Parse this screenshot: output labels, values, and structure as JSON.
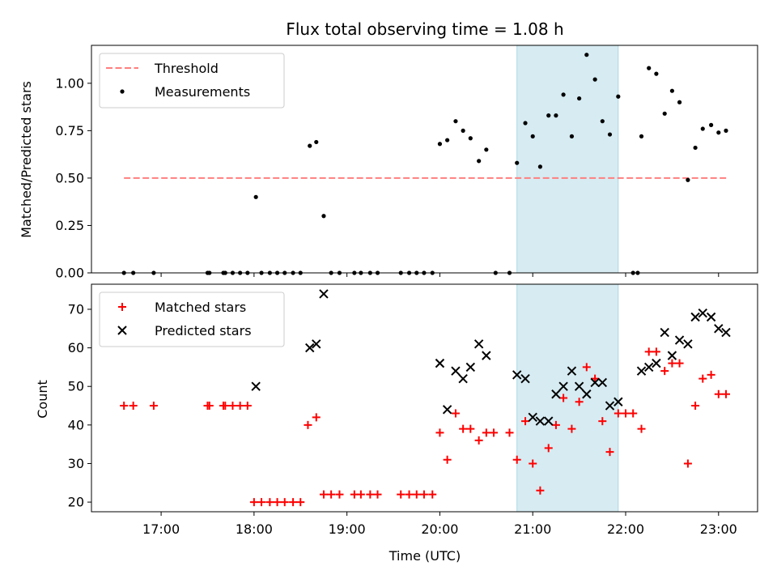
{
  "chart_data": [
    {
      "type": "scatter",
      "title": "Flux total observing time = 1.08 h",
      "ylabel": "Matched/Predicted stars",
      "ylim": [
        0,
        1.2
      ],
      "yticks": [
        "0.00",
        "0.25",
        "0.50",
        "0.75",
        "1.00"
      ],
      "xlim_hours": [
        16.25,
        23.42
      ],
      "highlight_span_hours": [
        20.83,
        21.92
      ],
      "highlight_color": "#add8e6",
      "legend_position": "top-left",
      "threshold": {
        "name": "Threshold",
        "value": 0.5,
        "x_range_hours": [
          16.6,
          23.1
        ],
        "color": "#ff7f7f",
        "style": "dashed"
      },
      "series": [
        {
          "name": "Measurements",
          "color": "#000000",
          "marker": "dot",
          "points": [
            [
              16.6,
              0
            ],
            [
              16.7,
              0
            ],
            [
              16.92,
              0
            ],
            [
              17.5,
              0
            ],
            [
              17.52,
              0
            ],
            [
              17.67,
              0
            ],
            [
              17.69,
              0
            ],
            [
              17.77,
              0
            ],
            [
              17.85,
              0
            ],
            [
              17.93,
              0
            ],
            [
              18.02,
              0.4
            ],
            [
              18.08,
              0
            ],
            [
              18.17,
              0
            ],
            [
              18.25,
              0
            ],
            [
              18.33,
              0
            ],
            [
              18.42,
              0
            ],
            [
              18.5,
              0
            ],
            [
              18.6,
              0.67
            ],
            [
              18.67,
              0.69
            ],
            [
              18.75,
              0.3
            ],
            [
              18.83,
              0
            ],
            [
              18.92,
              0
            ],
            [
              19.08,
              0
            ],
            [
              19.15,
              0
            ],
            [
              19.25,
              0
            ],
            [
              19.33,
              0
            ],
            [
              19.58,
              0
            ],
            [
              19.67,
              0
            ],
            [
              19.75,
              0
            ],
            [
              19.83,
              0
            ],
            [
              19.92,
              0
            ],
            [
              20.0,
              0.68
            ],
            [
              20.08,
              0.7
            ],
            [
              20.17,
              0.8
            ],
            [
              20.25,
              0.75
            ],
            [
              20.33,
              0.71
            ],
            [
              20.42,
              0.59
            ],
            [
              20.5,
              0.65
            ],
            [
              20.6,
              0
            ],
            [
              20.75,
              0
            ],
            [
              20.83,
              0.58
            ],
            [
              20.92,
              0.79
            ],
            [
              21.0,
              0.72
            ],
            [
              21.08,
              0.56
            ],
            [
              21.17,
              0.83
            ],
            [
              21.25,
              0.83
            ],
            [
              21.33,
              0.94
            ],
            [
              21.42,
              0.72
            ],
            [
              21.5,
              0.92
            ],
            [
              21.58,
              1.15
            ],
            [
              21.67,
              1.02
            ],
            [
              21.75,
              0.8
            ],
            [
              21.83,
              0.73
            ],
            [
              21.92,
              0.93
            ],
            [
              22.08,
              0
            ],
            [
              22.13,
              0
            ],
            [
              22.17,
              0.72
            ],
            [
              22.25,
              1.08
            ],
            [
              22.33,
              1.05
            ],
            [
              22.42,
              0.84
            ],
            [
              22.5,
              0.96
            ],
            [
              22.58,
              0.9
            ],
            [
              22.67,
              0.49
            ],
            [
              22.75,
              0.66
            ],
            [
              22.83,
              0.76
            ],
            [
              22.92,
              0.78
            ],
            [
              23.0,
              0.74
            ],
            [
              23.08,
              0.75
            ]
          ]
        }
      ]
    },
    {
      "type": "scatter",
      "xlabel": "Time (UTC)",
      "ylabel": "Count",
      "ylim": [
        17.5,
        76.5
      ],
      "yticks": [
        "20",
        "30",
        "40",
        "50",
        "60",
        "70"
      ],
      "xlim_hours": [
        16.25,
        23.42
      ],
      "xticks": [
        "17:00",
        "18:00",
        "19:00",
        "20:00",
        "21:00",
        "22:00",
        "23:00"
      ],
      "highlight_span_hours": [
        20.83,
        21.92
      ],
      "highlight_color": "#add8e6",
      "legend_position": "top-left",
      "series": [
        {
          "name": "Matched stars",
          "color": "#ff0000",
          "marker": "plus",
          "points": [
            [
              16.6,
              45
            ],
            [
              16.7,
              45
            ],
            [
              16.92,
              45
            ],
            [
              17.5,
              45
            ],
            [
              17.52,
              45
            ],
            [
              17.67,
              45
            ],
            [
              17.69,
              45
            ],
            [
              17.77,
              45
            ],
            [
              17.85,
              45
            ],
            [
              17.93,
              45
            ],
            [
              18.0,
              20
            ],
            [
              18.08,
              20
            ],
            [
              18.17,
              20
            ],
            [
              18.25,
              20
            ],
            [
              18.33,
              20
            ],
            [
              18.42,
              20
            ],
            [
              18.5,
              20
            ],
            [
              18.58,
              40
            ],
            [
              18.67,
              42
            ],
            [
              18.75,
              22
            ],
            [
              18.83,
              22
            ],
            [
              18.92,
              22
            ],
            [
              19.08,
              22
            ],
            [
              19.15,
              22
            ],
            [
              19.25,
              22
            ],
            [
              19.33,
              22
            ],
            [
              19.58,
              22
            ],
            [
              19.67,
              22
            ],
            [
              19.75,
              22
            ],
            [
              19.83,
              22
            ],
            [
              19.92,
              22
            ],
            [
              20.0,
              38
            ],
            [
              20.08,
              31
            ],
            [
              20.17,
              43
            ],
            [
              20.25,
              39
            ],
            [
              20.33,
              39
            ],
            [
              20.42,
              36
            ],
            [
              20.5,
              38
            ],
            [
              20.58,
              38
            ],
            [
              20.75,
              38
            ],
            [
              20.83,
              31
            ],
            [
              20.92,
              41
            ],
            [
              21.0,
              30
            ],
            [
              21.08,
              23
            ],
            [
              21.17,
              34
            ],
            [
              21.25,
              40
            ],
            [
              21.33,
              47
            ],
            [
              21.42,
              39
            ],
            [
              21.5,
              46
            ],
            [
              21.58,
              55
            ],
            [
              21.67,
              52
            ],
            [
              21.75,
              41
            ],
            [
              21.83,
              33
            ],
            [
              21.92,
              43
            ],
            [
              22.0,
              43
            ],
            [
              22.08,
              43
            ],
            [
              22.17,
              39
            ],
            [
              22.25,
              59
            ],
            [
              22.33,
              59
            ],
            [
              22.42,
              54
            ],
            [
              22.5,
              56
            ],
            [
              22.58,
              56
            ],
            [
              22.67,
              30
            ],
            [
              22.75,
              45
            ],
            [
              22.83,
              52
            ],
            [
              22.92,
              53
            ],
            [
              23.0,
              48
            ],
            [
              23.08,
              48
            ]
          ]
        },
        {
          "name": "Predicted stars",
          "color": "#000000",
          "marker": "x",
          "points": [
            [
              18.02,
              50
            ],
            [
              18.6,
              60
            ],
            [
              18.67,
              61
            ],
            [
              18.75,
              74
            ],
            [
              20.0,
              56
            ],
            [
              20.08,
              44
            ],
            [
              20.17,
              54
            ],
            [
              20.25,
              52
            ],
            [
              20.33,
              55
            ],
            [
              20.42,
              61
            ],
            [
              20.5,
              58
            ],
            [
              20.83,
              53
            ],
            [
              20.92,
              52
            ],
            [
              21.0,
              42
            ],
            [
              21.08,
              41
            ],
            [
              21.17,
              41
            ],
            [
              21.25,
              48
            ],
            [
              21.33,
              50
            ],
            [
              21.42,
              54
            ],
            [
              21.5,
              50
            ],
            [
              21.58,
              48
            ],
            [
              21.67,
              51
            ],
            [
              21.75,
              51
            ],
            [
              21.83,
              45
            ],
            [
              21.92,
              46
            ],
            [
              22.17,
              54
            ],
            [
              22.25,
              55
            ],
            [
              22.33,
              56
            ],
            [
              22.42,
              64
            ],
            [
              22.5,
              58
            ],
            [
              22.58,
              62
            ],
            [
              22.67,
              61
            ],
            [
              22.75,
              68
            ],
            [
              22.83,
              69
            ],
            [
              22.92,
              68
            ],
            [
              23.0,
              65
            ],
            [
              23.08,
              64
            ]
          ]
        }
      ]
    }
  ]
}
